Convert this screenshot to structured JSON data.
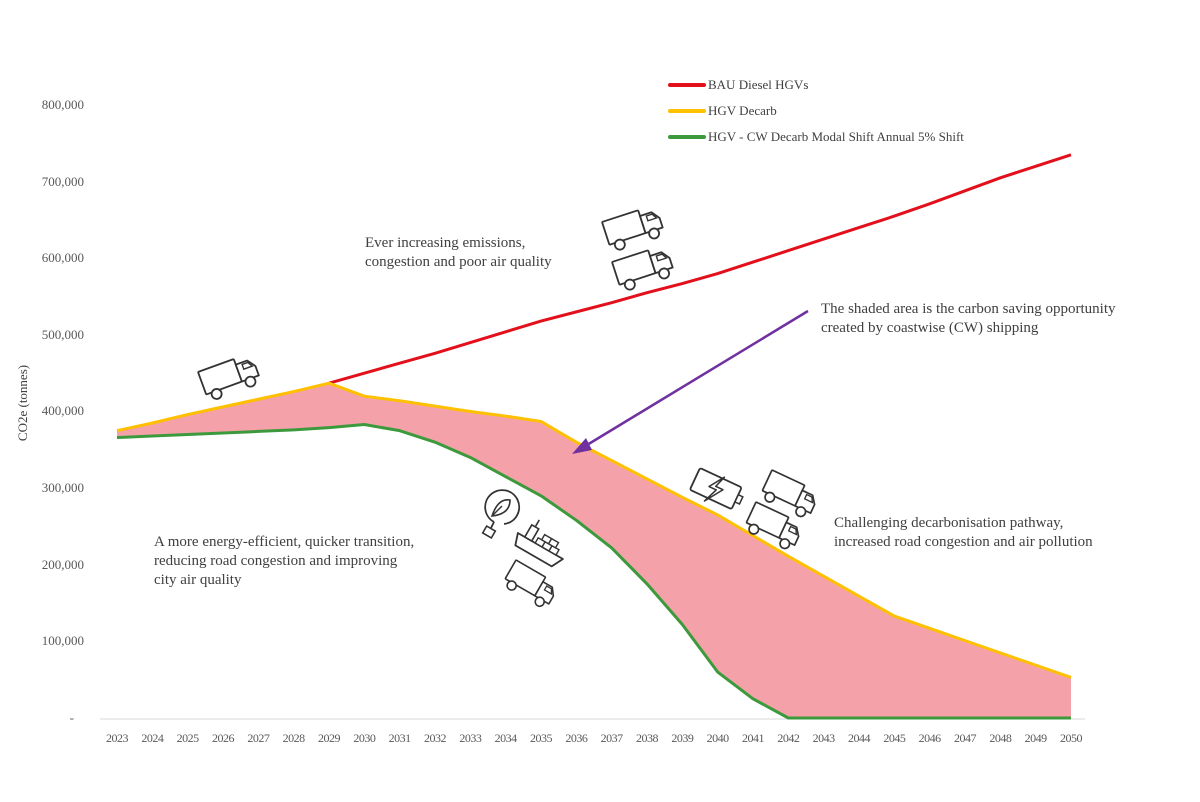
{
  "chart_data": {
    "type": "line",
    "title": "",
    "xlabel": "",
    "ylabel": "CO2e (tonnes)",
    "ylim": [
      0,
      800000
    ],
    "grid": false,
    "legend_position": "top-right",
    "y_ticks": [
      "-",
      "100,000",
      "200,000",
      "300,000",
      "400,000",
      "500,000",
      "600,000",
      "700,000",
      "800,000"
    ],
    "x": [
      2023,
      2024,
      2025,
      2026,
      2027,
      2028,
      2029,
      2030,
      2031,
      2032,
      2033,
      2034,
      2035,
      2036,
      2037,
      2038,
      2039,
      2040,
      2041,
      2042,
      2043,
      2044,
      2045,
      2046,
      2047,
      2048,
      2049,
      2050
    ],
    "series": [
      {
        "name": "BAU Diesel HGVs",
        "color": "#e3101c",
        "values": [
          375000,
          385000,
          396000,
          406000,
          416000,
          426000,
          437000,
          450000,
          463000,
          476000,
          490000,
          504000,
          518000,
          530000,
          542000,
          555000,
          567000,
          580000,
          595000,
          610000,
          625000,
          640000,
          655000,
          671000,
          688000,
          705000,
          720000,
          735000
        ]
      },
      {
        "name": "HGV Decarb",
        "color": "#ffc000",
        "values": [
          375000,
          385000,
          396000,
          406000,
          416000,
          426000,
          437000,
          420000,
          414000,
          407000,
          400000,
          394000,
          387000,
          360000,
          336000,
          312000,
          288000,
          265000,
          238000,
          211000,
          185000,
          159000,
          133000,
          117000,
          101000,
          85000,
          69000,
          53000
        ]
      },
      {
        "name": "HGV - CW Decarb Modal Shift Annual 5% Shift",
        "color": "#3c9a3c",
        "values": [
          366000,
          368000,
          370000,
          372000,
          374000,
          376000,
          379000,
          383000,
          375000,
          360000,
          340000,
          315000,
          290000,
          258000,
          222000,
          175000,
          122000,
          60000,
          25000,
          0,
          0,
          0,
          0,
          0,
          0,
          0,
          0,
          0
        ]
      }
    ],
    "shaded_area": {
      "between": [
        "HGV Decarb",
        "HGV - CW Decarb Modal Shift Annual 5% Shift"
      ],
      "color": "#f4a1a9"
    },
    "annotations": [
      {
        "text": "Ever increasing emissions, congestion and poor air quality"
      },
      {
        "text": "The shaded area is the carbon saving opportunity created by coastwise (CW) shipping",
        "arrow_color": "#7030a0"
      },
      {
        "text": "A more energy-efficient, quicker transition, reducing road congestion and improving city air quality"
      },
      {
        "text": "Challenging decarbonisation pathway, increased road congestion and air pollution"
      }
    ]
  },
  "axis": {
    "ylabel": "CO2e (tonnes)",
    "yticks": [
      "800,000",
      "700,000",
      "600,000",
      "500,000",
      "400,000",
      "300,000",
      "200,000",
      "100,000",
      "-"
    ],
    "xticks": [
      "2023",
      "2024",
      "2025",
      "2026",
      "2027",
      "2028",
      "2029",
      "2030",
      "2031",
      "2032",
      "2033",
      "2034",
      "2035",
      "2036",
      "2037",
      "2038",
      "2039",
      "2040",
      "2041",
      "2042",
      "2043",
      "2044",
      "2045",
      "2046",
      "2047",
      "2048",
      "2049",
      "2050"
    ]
  },
  "legend": {
    "items": [
      {
        "label": "BAU Diesel HGVs",
        "color": "#e3101c"
      },
      {
        "label": "HGV Decarb",
        "color": "#ffc000"
      },
      {
        "label": "HGV - CW Decarb Modal Shift Annual 5% Shift",
        "color": "#3c9a3c"
      }
    ]
  },
  "annotations": {
    "bau": {
      "line1": "Ever increasing emissions,",
      "line2": "congestion and poor air quality"
    },
    "shaded": {
      "line1": "The shaded area is the carbon saving opportunity",
      "line2": "created by coastwise (CW) shipping"
    },
    "cw": {
      "line1": "A more energy-efficient, quicker transition,",
      "line2": "reducing road congestion and improving",
      "line3": "city air quality"
    },
    "decarb": {
      "line1": "Challenging decarbonisation pathway,",
      "line2": "increased road congestion and air pollution"
    }
  },
  "icons": [
    "truck-icon",
    "truck-icon",
    "truck-icon",
    "electric-battery-icon",
    "truck-icon",
    "truck-icon",
    "eco-plug-icon",
    "cargo-ship-icon",
    "truck-icon"
  ]
}
